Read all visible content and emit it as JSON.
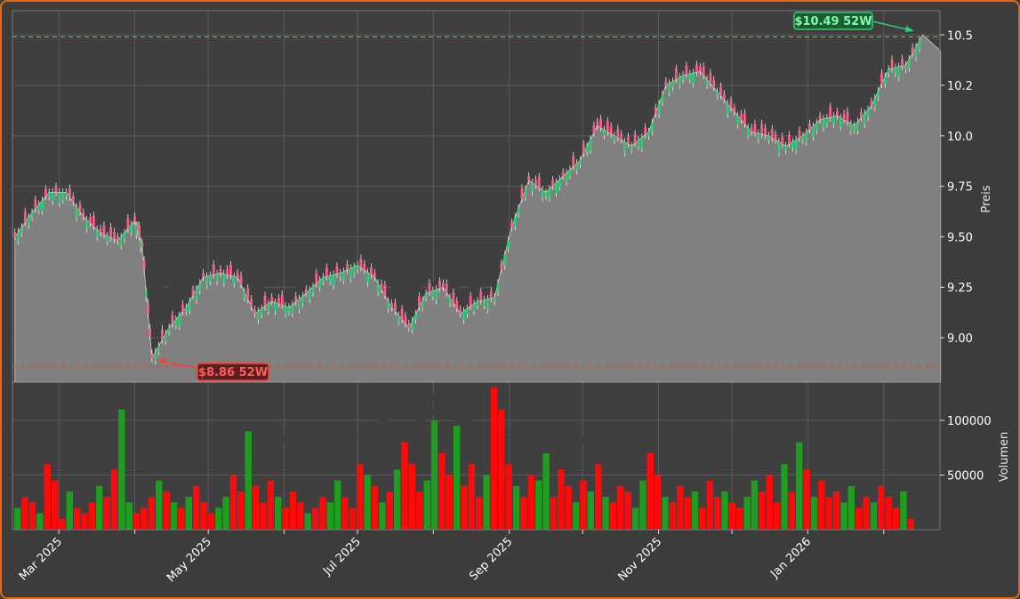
{
  "colors": {
    "frame_border": "#e8660c",
    "background": "#3c3c3c",
    "panel": "#3f3f3f",
    "area_fill": "#808080",
    "up": "#2ecc71",
    "down": "#ff5c8a",
    "vol_up": "#1e9e1e",
    "vol_down": "#ff0a0a",
    "high_line": "#2ecc71",
    "low_line": "#ff3b3b"
  },
  "watermark": {
    "main": "free-signale.trade",
    "ticker": "CEV",
    "name": "Eaton Vance California Municipal Income Trust"
  },
  "chart_data": [
    {
      "type": "line",
      "subtype": "candlestick-area",
      "ylabel": "Preis",
      "ylim": [
        8.78,
        10.62
      ],
      "yticks": [
        9.0,
        9.25,
        9.5,
        9.75,
        10.0,
        10.25,
        10.5
      ],
      "ytick_labels": [
        "9.00",
        "9.25",
        "9.50",
        "9.75",
        "10.0",
        "10.2",
        "10.5"
      ],
      "xlim": [
        "2025-02-10",
        "2026-02-24"
      ],
      "xticks": [
        "2025-03-01",
        "2025-04-01",
        "2025-05-01",
        "2025-06-01",
        "2025-07-01",
        "2025-08-01",
        "2025-09-01",
        "2025-10-01",
        "2025-11-01",
        "2025-12-01",
        "2026-01-01",
        "2026-02-01"
      ],
      "xtick_labels": [
        "Mar 2025",
        "",
        "May 2025",
        "",
        "Jul 2025",
        "",
        "Sep 2025",
        "",
        "Nov 2025",
        "",
        "Jan 2026",
        ""
      ],
      "grid": true,
      "close_series": {
        "x": [
          "2025-02-11",
          "2025-02-18",
          "2025-02-25",
          "2025-03-04",
          "2025-03-11",
          "2025-03-18",
          "2025-03-25",
          "2025-04-01",
          "2025-04-04",
          "2025-04-08",
          "2025-04-15",
          "2025-04-22",
          "2025-04-29",
          "2025-05-06",
          "2025-05-13",
          "2025-05-20",
          "2025-05-27",
          "2025-06-03",
          "2025-06-10",
          "2025-06-17",
          "2025-06-24",
          "2025-07-01",
          "2025-07-08",
          "2025-07-15",
          "2025-07-22",
          "2025-07-29",
          "2025-08-05",
          "2025-08-12",
          "2025-08-19",
          "2025-08-26",
          "2025-09-02",
          "2025-09-09",
          "2025-09-16",
          "2025-09-23",
          "2025-09-30",
          "2025-10-07",
          "2025-10-14",
          "2025-10-21",
          "2025-10-28",
          "2025-11-04",
          "2025-11-11",
          "2025-11-18",
          "2025-11-25",
          "2025-12-02",
          "2025-12-09",
          "2025-12-16",
          "2025-12-23",
          "2025-12-30",
          "2026-01-06",
          "2026-01-13",
          "2026-01-20",
          "2026-01-27",
          "2026-02-03",
          "2026-02-10",
          "2026-02-17"
        ],
        "y": [
          9.5,
          9.62,
          9.72,
          9.72,
          9.6,
          9.52,
          9.48,
          9.58,
          9.45,
          8.9,
          9.05,
          9.15,
          9.3,
          9.32,
          9.3,
          9.12,
          9.18,
          9.15,
          9.22,
          9.3,
          9.32,
          9.36,
          9.3,
          9.15,
          9.05,
          9.22,
          9.25,
          9.12,
          9.18,
          9.2,
          9.55,
          9.78,
          9.72,
          9.8,
          9.88,
          10.05,
          10.0,
          9.95,
          10.02,
          10.25,
          10.3,
          10.32,
          10.22,
          10.12,
          10.02,
          10.0,
          9.95,
          10.0,
          10.08,
          10.1,
          10.05,
          10.15,
          10.33,
          10.35,
          10.5
        ]
      },
      "annotations": [
        {
          "label": "$10.49 52W",
          "value": 10.49,
          "date": "2026-02-17",
          "kind": "52-week high"
        },
        {
          "label": "$8.86 52W",
          "value": 8.86,
          "date": "2025-04-08",
          "kind": "52-week low"
        }
      ]
    },
    {
      "type": "bar",
      "ylabel": "Volumen",
      "ylim": [
        0,
        135000
      ],
      "yticks": [
        50000,
        100000
      ],
      "ytick_labels": [
        "50000",
        "100000"
      ],
      "series": [
        {
          "values": [
            20000,
            30000,
            25000,
            15000,
            60000,
            45000,
            10000,
            35000,
            20000,
            15000,
            25000,
            40000,
            30000,
            55000,
            110000,
            25000,
            15000,
            20000,
            30000,
            45000,
            35000,
            25000,
            20000,
            30000,
            40000,
            25000,
            15000,
            20000,
            30000,
            50000,
            35000,
            90000,
            40000,
            25000,
            45000,
            30000,
            20000,
            35000,
            25000,
            15000,
            20000,
            30000,
            25000,
            45000,
            30000,
            20000,
            60000,
            50000,
            40000,
            25000,
            35000,
            55000,
            80000,
            60000,
            35000,
            45000,
            100000,
            70000,
            50000,
            95000,
            40000,
            60000,
            30000,
            50000,
            130000,
            110000,
            60000,
            40000,
            30000,
            50000,
            45000,
            70000,
            30000,
            55000,
            40000,
            25000,
            45000,
            35000,
            60000,
            30000,
            25000,
            40000,
            35000,
            20000,
            45000,
            70000,
            50000,
            30000,
            25000,
            40000,
            30000,
            35000,
            20000,
            45000,
            30000,
            35000,
            25000,
            20000,
            30000,
            45000,
            35000,
            50000,
            25000,
            60000,
            35000,
            80000,
            55000,
            30000,
            45000,
            30000,
            35000,
            25000,
            40000,
            20000,
            30000,
            25000,
            40000,
            30000,
            20000,
            35000,
            10000
          ]
        }
      ]
    }
  ]
}
